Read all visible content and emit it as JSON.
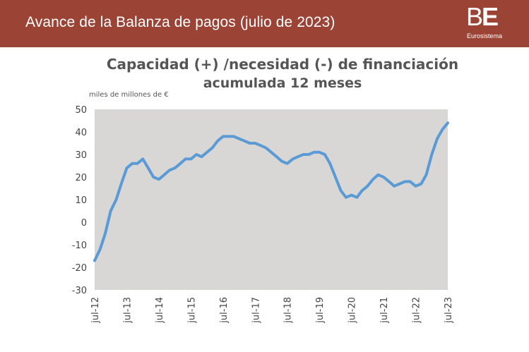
{
  "header": {
    "title": "Avance de la Balanza de pagos (julio de 2023)",
    "logo_mark_b": "B",
    "logo_mark_e": "E",
    "logo_text": "Eurosistema"
  },
  "colors": {
    "header_bg": "#9b4436",
    "plot_bg": "#d9d6d6",
    "series_line": "#5a9bd5",
    "text": "#555555"
  },
  "chart_data": {
    "type": "line",
    "title": "Capacidad (+) /necesidad (-) de financiación",
    "subtitle": "acumulada 12 meses",
    "unit": "miles de millones de  €",
    "ylim": [
      -30,
      50
    ],
    "yticks": [
      -30,
      -20,
      -10,
      0,
      10,
      20,
      30,
      40,
      50
    ],
    "xlim": [
      2012.5,
      2023.5
    ],
    "xtick_labels": [
      {
        "x": 2012.5,
        "label": "jul-12"
      },
      {
        "x": 2013.5,
        "label": "jul-13"
      },
      {
        "x": 2014.5,
        "label": "jul-14"
      },
      {
        "x": 2015.5,
        "label": "jul-15"
      },
      {
        "x": 2016.5,
        "label": "jul-16"
      },
      {
        "x": 2017.5,
        "label": "jul-17"
      },
      {
        "x": 2018.5,
        "label": "jul-18"
      },
      {
        "x": 2019.5,
        "label": "jul-19"
      },
      {
        "x": 2020.5,
        "label": "jul-20"
      },
      {
        "x": 2021.5,
        "label": "jul-21"
      },
      {
        "x": 2022.5,
        "label": "jul-22"
      },
      {
        "x": 2023.5,
        "label": "jul-23"
      }
    ],
    "grid": false,
    "legend": "none",
    "series": [
      {
        "x": [
          2012.5,
          2012.67,
          2012.83,
          2013.0,
          2013.17,
          2013.33,
          2013.5,
          2013.67,
          2013.83,
          2014.0,
          2014.17,
          2014.33,
          2014.5,
          2014.67,
          2014.83,
          2015.0,
          2015.17,
          2015.33,
          2015.5,
          2015.67,
          2015.83,
          2016.0,
          2016.17,
          2016.33,
          2016.5,
          2016.67,
          2016.83,
          2017.0,
          2017.17,
          2017.33,
          2017.5,
          2017.67,
          2017.83,
          2018.0,
          2018.17,
          2018.33,
          2018.5,
          2018.67,
          2018.83,
          2019.0,
          2019.17,
          2019.33,
          2019.5,
          2019.67,
          2019.83,
          2020.0,
          2020.17,
          2020.33,
          2020.5,
          2020.67,
          2020.83,
          2021.0,
          2021.17,
          2021.33,
          2021.5,
          2021.67,
          2021.83,
          2022.0,
          2022.17,
          2022.33,
          2022.5,
          2022.67,
          2022.83,
          2023.0,
          2023.17,
          2023.33,
          2023.5
        ],
        "values": [
          -17,
          -12,
          -5,
          5,
          10,
          17,
          24,
          26,
          26,
          28,
          24,
          20,
          19,
          21,
          23,
          24,
          26,
          28,
          28,
          30,
          29,
          31,
          33,
          36,
          38,
          38,
          38,
          37,
          36,
          35,
          35,
          34,
          33,
          31,
          29,
          27,
          26,
          28,
          29,
          30,
          30,
          31,
          31,
          30,
          26,
          20,
          14,
          11,
          12,
          11,
          14,
          16,
          19,
          21,
          20,
          18,
          16,
          17,
          18,
          18,
          16,
          17,
          21,
          30,
          37,
          41,
          44
        ]
      }
    ]
  }
}
